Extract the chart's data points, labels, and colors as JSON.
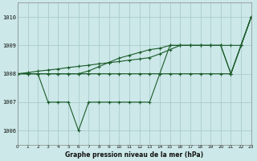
{
  "xlabel": "Graphe pression niveau de la mer (hPa)",
  "bg_color": "#cce8e8",
  "grid_color": "#aacccc",
  "line_color": "#1a5c2a",
  "xlim": [
    0,
    23
  ],
  "ylim": [
    1005.5,
    1010.5
  ],
  "yticks": [
    1006,
    1007,
    1008,
    1009,
    1010
  ],
  "xticks": [
    0,
    1,
    2,
    3,
    4,
    5,
    6,
    7,
    8,
    9,
    10,
    11,
    12,
    13,
    14,
    15,
    16,
    17,
    18,
    19,
    20,
    21,
    22,
    23
  ],
  "lines": [
    [
      1008,
      1008,
      1008,
      1008,
      1008,
      1008,
      1008,
      1008,
      1008,
      1008,
      1008,
      1008,
      1008,
      1008,
      1008,
      1008,
      1008,
      1008,
      1008,
      1008,
      1008,
      1008,
      1009,
      1010
    ],
    [
      1008,
      1008,
      1008,
      1008,
      1008,
      1008,
      1008,
      1008.1,
      1008.25,
      1008.4,
      1008.55,
      1008.65,
      1008.75,
      1008.85,
      1008.9,
      1009,
      1009,
      1009,
      1009,
      1009,
      1009,
      1008,
      1009,
      1010
    ],
    [
      1008,
      1008,
      1008,
      1007,
      1007,
      1007,
      1006,
      1007,
      1007,
      1007,
      1007,
      1007,
      1007,
      1007,
      1008,
      1009,
      1009,
      1009,
      1009,
      1009,
      1009,
      1009,
      1009,
      1010
    ],
    [
      1008,
      1008.04,
      1008.09,
      1008.13,
      1008.17,
      1008.22,
      1008.26,
      1008.3,
      1008.35,
      1008.39,
      1008.43,
      1008.48,
      1008.52,
      1008.57,
      1008.7,
      1008.85,
      1009,
      1009,
      1009,
      1009,
      1009,
      1008,
      1009,
      1010
    ]
  ]
}
